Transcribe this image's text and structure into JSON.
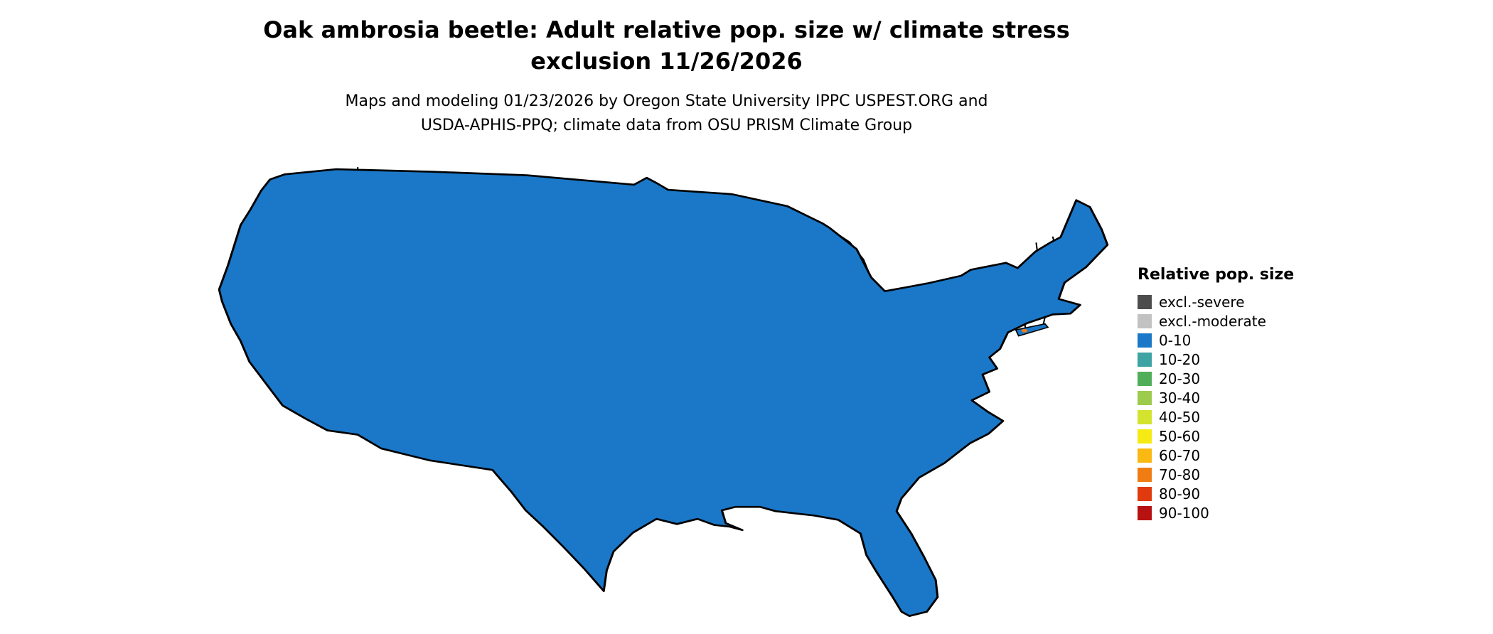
{
  "header": {
    "title_line1": "Oak ambrosia beetle: Adult relative pop. size w/ climate stress",
    "title_line2": "exclusion 11/26/2026",
    "subtitle_line1": "Maps and modeling 01/23/2026 by Oregon State University IPPC USPEST.ORG and",
    "subtitle_line2": "USDA-APHIS-PPQ; climate data from OSU PRISM Climate Group"
  },
  "legend": {
    "title": "Relative pop. size",
    "items": [
      {
        "label": "excl.-severe",
        "color": "#4d4d4d"
      },
      {
        "label": "excl.-moderate",
        "color": "#c2c2c2"
      },
      {
        "label": "0-10",
        "color": "#1b78c8"
      },
      {
        "label": "10-20",
        "color": "#3da3a3"
      },
      {
        "label": "20-30",
        "color": "#4fae57"
      },
      {
        "label": "30-40",
        "color": "#9ccb4e"
      },
      {
        "label": "40-50",
        "color": "#d4e32e"
      },
      {
        "label": "50-60",
        "color": "#f6ea14"
      },
      {
        "label": "60-70",
        "color": "#f9b912"
      },
      {
        "label": "70-80",
        "color": "#f07d13"
      },
      {
        "label": "80-90",
        "color": "#e03a0e"
      },
      {
        "label": "90-100",
        "color": "#b81111"
      }
    ]
  }
}
